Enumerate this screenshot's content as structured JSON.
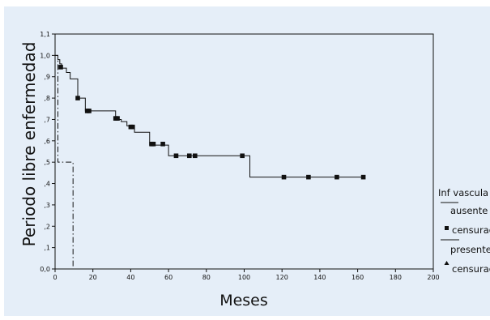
{
  "chart_data": {
    "type": "line",
    "subtype": "kaplan-meier-step",
    "xlabel": "Meses",
    "ylabel": "Periodo libre enfermedad",
    "xlim": [
      0,
      200
    ],
    "ylim": [
      0,
      1.1
    ],
    "x_ticks": [
      0,
      20,
      40,
      60,
      80,
      100,
      120,
      140,
      160,
      180,
      200
    ],
    "x_tick_labels": [
      "0",
      "20",
      "40",
      "60",
      "80",
      "100",
      "120",
      "140",
      "160",
      "180",
      "200"
    ],
    "y_ticks": [
      0,
      0.1,
      0.2,
      0.3,
      0.4,
      0.5,
      0.6,
      0.7,
      0.8,
      0.9,
      1.0,
      1.1
    ],
    "y_tick_labels": [
      "0,0",
      ",1",
      ",2",
      ",3",
      ",4",
      ",5",
      ",6",
      ",7",
      ",8",
      ",9",
      "1,0",
      "1,1"
    ],
    "grid": false,
    "legend_position": "right",
    "legend": {
      "title": "Inf vascula",
      "items": [
        "ausente",
        "censurad",
        "presente",
        "censurad"
      ]
    },
    "series": [
      {
        "name": "ausente",
        "style": "solid",
        "color": "#111111",
        "steps": [
          [
            0,
            1.0
          ],
          [
            1.5,
            0.98
          ],
          [
            2.5,
            0.96
          ],
          [
            3.5,
            0.94
          ],
          [
            6,
            0.92
          ],
          [
            8,
            0.89
          ],
          [
            12,
            0.8
          ],
          [
            16,
            0.74
          ],
          [
            24,
            0.74
          ],
          [
            30,
            0.74
          ],
          [
            32,
            0.7
          ],
          [
            35,
            0.69
          ],
          [
            38,
            0.67
          ],
          [
            42,
            0.64
          ],
          [
            50,
            0.58
          ],
          [
            55,
            0.58
          ],
          [
            60,
            0.53
          ],
          [
            100,
            0.53
          ],
          [
            103,
            0.43
          ],
          [
            163,
            0.43
          ]
        ],
        "censored": [
          [
            3,
            0.945
          ],
          [
            12,
            0.8
          ],
          [
            17,
            0.74
          ],
          [
            18,
            0.74
          ],
          [
            32,
            0.705
          ],
          [
            33,
            0.705
          ],
          [
            40,
            0.665
          ],
          [
            41,
            0.665
          ],
          [
            51,
            0.585
          ],
          [
            52,
            0.585
          ],
          [
            57,
            0.585
          ],
          [
            64,
            0.53
          ],
          [
            71,
            0.53
          ],
          [
            74,
            0.53
          ],
          [
            99,
            0.53
          ],
          [
            121,
            0.43
          ],
          [
            134,
            0.43
          ],
          [
            149,
            0.43
          ],
          [
            163,
            0.43
          ]
        ]
      },
      {
        "name": "presente",
        "style": "dash-dot",
        "color": "#111111",
        "steps": [
          [
            0,
            1.0
          ],
          [
            1.5,
            1.0
          ],
          [
            1.5,
            0.5
          ],
          [
            9.5,
            0.5
          ],
          [
            9.5,
            0.0
          ]
        ],
        "censored": []
      }
    ]
  }
}
